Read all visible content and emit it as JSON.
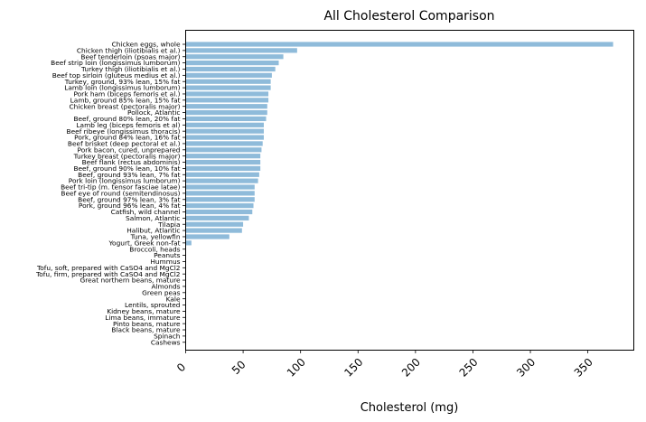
{
  "chart_data": {
    "type": "bar",
    "orientation": "horizontal",
    "title": "All Cholesterol Comparison",
    "xlabel": "Cholesterol (mg)",
    "ylabel": "",
    "xlim": [
      0,
      390
    ],
    "xticks": [
      0,
      50,
      100,
      150,
      200,
      250,
      300,
      350
    ],
    "grid": false,
    "bar_color": "#8fbbda",
    "categories": [
      "Chicken eggs, whole",
      "Chicken thigh (iliotibialis et al.)",
      "Beef tenderloin (psoas major)",
      "Beef strip loin (longissimus lumborum)",
      "Turkey thigh (iliotibialis et al.)",
      "Beef top sirloin (gluteus medius et al.)",
      "Turkey, ground, 93% lean, 15% fat",
      "Lamb loin (longissimus lumborum)",
      "Pork ham (biceps femoris et al.)",
      "Lamb, ground 85% lean, 15% fat",
      "Chicken breast (pectoralis major)",
      "Pollock, Atlantic",
      "Beef, ground 80% lean, 20% fat",
      "Lamb leg (biceps femoris et al)",
      "Beef ribeye (longissimus thoracis)",
      "Pork, ground 84% lean, 16% fat",
      "Beef brisket (deep pectoral et al.)",
      "Pork bacon, cured, unprepared",
      "Turkey breast (pectoralis major)",
      "Beef flank (rectus abdominis)",
      "Beef, ground 90% lean, 10% fat",
      "Beef, ground 93% lean, 7% fat",
      "Pork loin (longissimus lumborum)",
      "Beef tri-tip (m. tensor fasciae latae)",
      "Beef eye of round (semitendinosus)",
      "Beef, ground 97% lean, 3% fat",
      "Pork, ground 96% lean, 4% fat",
      "Catfish, wild channel",
      "Salmon, Atlantic",
      "Tilapia",
      "Halibut, Atlantic",
      "Tuna, yellowfin",
      "Yogurt, Greek non-fat",
      "Broccoli, heads",
      "Peanuts",
      "Hummus",
      "Tofu, soft, prepared with CaSO4 and MgCl2",
      "Tofu, firm, prepared with CaSO4 and MgCl2",
      "Great northern beans, mature",
      "Almonds",
      "Green peas",
      "Kale",
      "Lentils, sprouted",
      "Kidney beans, mature",
      "Lima beans, immature",
      "Pinto beans, mature",
      "Black beans, mature",
      "Spinach",
      "Cashews"
    ],
    "values": [
      372,
      97,
      85,
      81,
      78,
      75,
      74,
      74,
      72,
      72,
      71,
      71,
      70,
      68,
      68,
      68,
      67,
      66,
      65,
      65,
      65,
      64,
      63,
      60,
      60,
      60,
      59,
      58,
      55,
      50,
      49,
      38,
      5,
      0,
      0,
      0,
      0,
      0,
      0,
      0,
      0,
      0,
      0,
      0,
      0,
      0,
      0,
      0,
      0
    ]
  }
}
